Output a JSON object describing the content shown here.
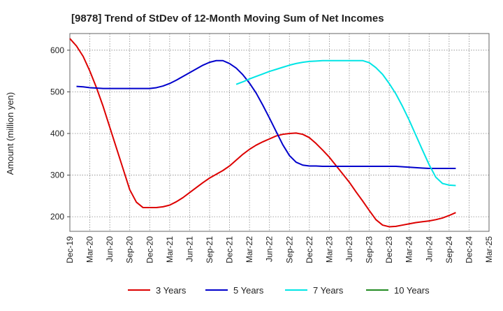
{
  "chart_data": {
    "type": "line",
    "title": "[9878]  Trend of StDev of 12-Month Moving Sum of Net Incomes",
    "ylabel": "Amount (million yen)",
    "xlabel": "",
    "ylim": [
      165,
      640
    ],
    "yticks": [
      200,
      300,
      400,
      500,
      600
    ],
    "xlim": [
      "2019-12",
      "2025-03"
    ],
    "xticks": [
      "Dec-19",
      "Mar-20",
      "Jun-20",
      "Sep-20",
      "Dec-20",
      "Mar-21",
      "Jun-21",
      "Sep-21",
      "Dec-21",
      "Mar-22",
      "Jun-22",
      "Sep-22",
      "Dec-22",
      "Mar-23",
      "Jun-23",
      "Sep-23",
      "Dec-23",
      "Mar-24",
      "Jun-24",
      "Sep-24",
      "Dec-24",
      "Mar-25"
    ],
    "grid": true,
    "legend_position": "bottom",
    "series": [
      {
        "name": "3 Years",
        "color": "#dd0000",
        "points": [
          [
            "2019-12",
            628
          ],
          [
            "2020-01",
            610
          ],
          [
            "2020-02",
            585
          ],
          [
            "2020-03",
            550
          ],
          [
            "2020-04",
            510
          ],
          [
            "2020-05",
            465
          ],
          [
            "2020-06",
            415
          ],
          [
            "2020-07",
            365
          ],
          [
            "2020-08",
            315
          ],
          [
            "2020-09",
            265
          ],
          [
            "2020-10",
            235
          ],
          [
            "2020-11",
            222
          ],
          [
            "2020-12",
            222
          ],
          [
            "2021-01",
            222
          ],
          [
            "2021-02",
            224
          ],
          [
            "2021-03",
            228
          ],
          [
            "2021-04",
            236
          ],
          [
            "2021-05",
            246
          ],
          [
            "2021-06",
            258
          ],
          [
            "2021-07",
            270
          ],
          [
            "2021-08",
            282
          ],
          [
            "2021-09",
            293
          ],
          [
            "2021-10",
            302
          ],
          [
            "2021-11",
            311
          ],
          [
            "2021-12",
            322
          ],
          [
            "2022-01",
            336
          ],
          [
            "2022-02",
            350
          ],
          [
            "2022-03",
            362
          ],
          [
            "2022-04",
            372
          ],
          [
            "2022-05",
            380
          ],
          [
            "2022-06",
            387
          ],
          [
            "2022-07",
            394
          ],
          [
            "2022-08",
            398
          ],
          [
            "2022-09",
            400
          ],
          [
            "2022-10",
            401
          ],
          [
            "2022-11",
            398
          ],
          [
            "2022-12",
            390
          ],
          [
            "2023-01",
            376
          ],
          [
            "2023-02",
            360
          ],
          [
            "2023-03",
            343
          ],
          [
            "2023-04",
            323
          ],
          [
            "2023-05",
            303
          ],
          [
            "2023-06",
            283
          ],
          [
            "2023-07",
            260
          ],
          [
            "2023-08",
            238
          ],
          [
            "2023-09",
            215
          ],
          [
            "2023-10",
            193
          ],
          [
            "2023-11",
            180
          ],
          [
            "2023-12",
            176
          ],
          [
            "2024-01",
            177
          ],
          [
            "2024-02",
            180
          ],
          [
            "2024-03",
            183
          ],
          [
            "2024-04",
            186
          ],
          [
            "2024-05",
            188
          ],
          [
            "2024-06",
            190
          ],
          [
            "2024-07",
            193
          ],
          [
            "2024-08",
            197
          ],
          [
            "2024-09",
            203
          ],
          [
            "2024-10",
            210
          ]
        ]
      },
      {
        "name": "5 Years",
        "color": "#0000cc",
        "points": [
          [
            "2020-01",
            513
          ],
          [
            "2020-02",
            512
          ],
          [
            "2020-03",
            510
          ],
          [
            "2020-04",
            509
          ],
          [
            "2020-05",
            508
          ],
          [
            "2020-06",
            508
          ],
          [
            "2020-07",
            508
          ],
          [
            "2020-08",
            508
          ],
          [
            "2020-09",
            508
          ],
          [
            "2020-10",
            508
          ],
          [
            "2020-11",
            508
          ],
          [
            "2020-12",
            508
          ],
          [
            "2021-01",
            510
          ],
          [
            "2021-02",
            514
          ],
          [
            "2021-03",
            520
          ],
          [
            "2021-04",
            528
          ],
          [
            "2021-05",
            537
          ],
          [
            "2021-06",
            546
          ],
          [
            "2021-07",
            555
          ],
          [
            "2021-08",
            564
          ],
          [
            "2021-09",
            571
          ],
          [
            "2021-10",
            575
          ],
          [
            "2021-11",
            575
          ],
          [
            "2021-12",
            568
          ],
          [
            "2022-01",
            557
          ],
          [
            "2022-02",
            541
          ],
          [
            "2022-03",
            521
          ],
          [
            "2022-04",
            497
          ],
          [
            "2022-05",
            468
          ],
          [
            "2022-06",
            437
          ],
          [
            "2022-07",
            405
          ],
          [
            "2022-08",
            373
          ],
          [
            "2022-09",
            347
          ],
          [
            "2022-10",
            331
          ],
          [
            "2022-11",
            324
          ],
          [
            "2022-12",
            322
          ],
          [
            "2023-01",
            322
          ],
          [
            "2023-02",
            321
          ],
          [
            "2023-03",
            321
          ],
          [
            "2023-04",
            321
          ],
          [
            "2023-05",
            321
          ],
          [
            "2023-06",
            321
          ],
          [
            "2023-07",
            321
          ],
          [
            "2023-08",
            321
          ],
          [
            "2023-09",
            321
          ],
          [
            "2023-10",
            321
          ],
          [
            "2023-11",
            321
          ],
          [
            "2023-12",
            321
          ],
          [
            "2024-01",
            321
          ],
          [
            "2024-02",
            320
          ],
          [
            "2024-03",
            319
          ],
          [
            "2024-04",
            318
          ],
          [
            "2024-05",
            317
          ],
          [
            "2024-06",
            316
          ],
          [
            "2024-07",
            316
          ],
          [
            "2024-08",
            316
          ],
          [
            "2024-09",
            316
          ],
          [
            "2024-10",
            316
          ]
        ]
      },
      {
        "name": "7 Years",
        "color": "#00e5e5",
        "points": [
          [
            "2022-01",
            518
          ],
          [
            "2022-02",
            524
          ],
          [
            "2022-03",
            531
          ],
          [
            "2022-04",
            537
          ],
          [
            "2022-05",
            543
          ],
          [
            "2022-06",
            549
          ],
          [
            "2022-07",
            554
          ],
          [
            "2022-08",
            559
          ],
          [
            "2022-09",
            564
          ],
          [
            "2022-10",
            568
          ],
          [
            "2022-11",
            571
          ],
          [
            "2022-12",
            573
          ],
          [
            "2023-01",
            574
          ],
          [
            "2023-02",
            575
          ],
          [
            "2023-03",
            575
          ],
          [
            "2023-04",
            575
          ],
          [
            "2023-05",
            575
          ],
          [
            "2023-06",
            575
          ],
          [
            "2023-07",
            575
          ],
          [
            "2023-08",
            575
          ],
          [
            "2023-09",
            570
          ],
          [
            "2023-10",
            558
          ],
          [
            "2023-11",
            542
          ],
          [
            "2023-12",
            520
          ],
          [
            "2024-01",
            495
          ],
          [
            "2024-02",
            465
          ],
          [
            "2024-03",
            432
          ],
          [
            "2024-04",
            396
          ],
          [
            "2024-05",
            360
          ],
          [
            "2024-06",
            325
          ],
          [
            "2024-07",
            295
          ],
          [
            "2024-08",
            280
          ],
          [
            "2024-09",
            276
          ],
          [
            "2024-10",
            275
          ]
        ]
      },
      {
        "name": "10 Years",
        "color": "#228b22",
        "points": []
      }
    ]
  }
}
